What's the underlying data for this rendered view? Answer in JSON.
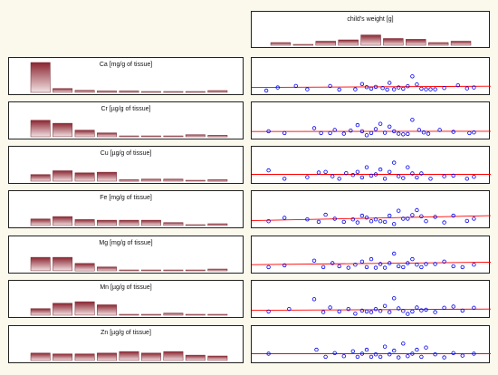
{
  "chart_data": {
    "type": "scatter",
    "colors": {
      "bar_top": "#8b2530",
      "bar_bottom": "#f2e2e4",
      "bar_stroke": "#7a2a33",
      "point": "#0000ee",
      "fit_line": "#ff0000",
      "page_background": "#fbf8ec",
      "panel_background": "#ffffff"
    },
    "response": {
      "name": "child's weight [g]",
      "histogram": [
        0.1,
        0.02,
        0.15,
        0.2,
        0.38,
        0.25,
        0.22,
        0.1,
        0.15
      ]
    },
    "predictors": [
      {
        "name": "Ca [mg/g of tissue]",
        "histogram": [
          1.0,
          0.13,
          0.07,
          0.05,
          0.05,
          0.02,
          0.02,
          0.02,
          0.06
        ],
        "fit": [
          0.16,
          0.2
        ],
        "points": [
          [
            0.04,
            0.06
          ],
          [
            0.09,
            0.16
          ],
          [
            0.17,
            0.21
          ],
          [
            0.22,
            0.1
          ],
          [
            0.32,
            0.21
          ],
          [
            0.36,
            0.09
          ],
          [
            0.43,
            0.1
          ],
          [
            0.46,
            0.27
          ],
          [
            0.48,
            0.17
          ],
          [
            0.5,
            0.12
          ],
          [
            0.52,
            0.18
          ],
          [
            0.55,
            0.14
          ],
          [
            0.57,
            0.09
          ],
          [
            0.58,
            0.31
          ],
          [
            0.6,
            0.1
          ],
          [
            0.62,
            0.16
          ],
          [
            0.64,
            0.12
          ],
          [
            0.66,
            0.2
          ],
          [
            0.68,
            0.52
          ],
          [
            0.7,
            0.26
          ],
          [
            0.72,
            0.12
          ],
          [
            0.74,
            0.1
          ],
          [
            0.78,
            0.1
          ],
          [
            0.82,
            0.14
          ],
          [
            0.88,
            0.23
          ],
          [
            0.92,
            0.13
          ],
          [
            0.95,
            0.16
          ],
          [
            0.76,
            0.1
          ]
        ]
      },
      {
        "name": "Cr [µg/g of tissue]",
        "histogram": [
          0.55,
          0.45,
          0.22,
          0.13,
          0.03,
          0.03,
          0.03,
          0.07,
          0.05
        ],
        "fit": [
          0.17,
          0.18
        ],
        "points": [
          [
            0.05,
            0.18
          ],
          [
            0.12,
            0.12
          ],
          [
            0.25,
            0.28
          ],
          [
            0.28,
            0.12
          ],
          [
            0.32,
            0.12
          ],
          [
            0.34,
            0.22
          ],
          [
            0.38,
            0.1
          ],
          [
            0.41,
            0.2
          ],
          [
            0.44,
            0.38
          ],
          [
            0.46,
            0.18
          ],
          [
            0.48,
            0.05
          ],
          [
            0.5,
            0.12
          ],
          [
            0.52,
            0.25
          ],
          [
            0.54,
            0.42
          ],
          [
            0.56,
            0.13
          ],
          [
            0.58,
            0.33
          ],
          [
            0.6,
            0.18
          ],
          [
            0.62,
            0.1
          ],
          [
            0.64,
            0.08
          ],
          [
            0.66,
            0.09
          ],
          [
            0.68,
            0.55
          ],
          [
            0.71,
            0.22
          ],
          [
            0.73,
            0.14
          ],
          [
            0.75,
            0.1
          ],
          [
            0.8,
            0.22
          ],
          [
            0.86,
            0.16
          ],
          [
            0.93,
            0.12
          ],
          [
            0.95,
            0.14
          ]
        ]
      },
      {
        "name": "Cu [µg/g of tissue]",
        "histogram": [
          0.22,
          0.35,
          0.28,
          0.3,
          0.05,
          0.07,
          0.07,
          0.03,
          0.05
        ],
        "fit": [
          0.22,
          0.22
        ],
        "points": [
          [
            0.05,
            0.35
          ],
          [
            0.12,
            0.08
          ],
          [
            0.22,
            0.13
          ],
          [
            0.27,
            0.28
          ],
          [
            0.3,
            0.3
          ],
          [
            0.33,
            0.16
          ],
          [
            0.36,
            0.08
          ],
          [
            0.39,
            0.26
          ],
          [
            0.42,
            0.2
          ],
          [
            0.44,
            0.3
          ],
          [
            0.46,
            0.12
          ],
          [
            0.48,
            0.45
          ],
          [
            0.5,
            0.18
          ],
          [
            0.52,
            0.22
          ],
          [
            0.54,
            0.38
          ],
          [
            0.56,
            0.08
          ],
          [
            0.58,
            0.3
          ],
          [
            0.6,
            0.6
          ],
          [
            0.62,
            0.16
          ],
          [
            0.64,
            0.1
          ],
          [
            0.66,
            0.45
          ],
          [
            0.68,
            0.25
          ],
          [
            0.7,
            0.12
          ],
          [
            0.72,
            0.25
          ],
          [
            0.76,
            0.08
          ],
          [
            0.82,
            0.16
          ],
          [
            0.86,
            0.18
          ],
          [
            0.92,
            0.08
          ],
          [
            0.95,
            0.14
          ]
        ]
      },
      {
        "name": "Fe [mg/g of tissue]",
        "histogram": [
          0.22,
          0.3,
          0.2,
          0.18,
          0.18,
          0.18,
          0.1,
          0.02,
          0.06
        ],
        "fit": [
          0.16,
          0.32
        ],
        "points": [
          [
            0.05,
            0.14
          ],
          [
            0.12,
            0.25
          ],
          [
            0.22,
            0.2
          ],
          [
            0.27,
            0.12
          ],
          [
            0.3,
            0.35
          ],
          [
            0.34,
            0.22
          ],
          [
            0.38,
            0.12
          ],
          [
            0.42,
            0.2
          ],
          [
            0.44,
            0.1
          ],
          [
            0.46,
            0.32
          ],
          [
            0.48,
            0.26
          ],
          [
            0.5,
            0.14
          ],
          [
            0.52,
            0.2
          ],
          [
            0.54,
            0.14
          ],
          [
            0.56,
            0.12
          ],
          [
            0.58,
            0.32
          ],
          [
            0.6,
            0.05
          ],
          [
            0.62,
            0.48
          ],
          [
            0.64,
            0.22
          ],
          [
            0.66,
            0.22
          ],
          [
            0.68,
            0.34
          ],
          [
            0.7,
            0.5
          ],
          [
            0.72,
            0.3
          ],
          [
            0.74,
            0.14
          ],
          [
            0.78,
            0.28
          ],
          [
            0.82,
            0.1
          ],
          [
            0.86,
            0.32
          ],
          [
            0.92,
            0.15
          ],
          [
            0.95,
            0.22
          ]
        ]
      },
      {
        "name": "Mg [mg/g of tissue]",
        "histogram": [
          0.45,
          0.45,
          0.25,
          0.13,
          0.03,
          0.03,
          0.03,
          0.03,
          0.06
        ],
        "fit": [
          0.2,
          0.28
        ],
        "points": [
          [
            0.05,
            0.12
          ],
          [
            0.12,
            0.18
          ],
          [
            0.25,
            0.33
          ],
          [
            0.29,
            0.12
          ],
          [
            0.33,
            0.25
          ],
          [
            0.36,
            0.15
          ],
          [
            0.4,
            0.1
          ],
          [
            0.43,
            0.2
          ],
          [
            0.46,
            0.3
          ],
          [
            0.48,
            0.12
          ],
          [
            0.5,
            0.38
          ],
          [
            0.52,
            0.1
          ],
          [
            0.54,
            0.22
          ],
          [
            0.56,
            0.1
          ],
          [
            0.58,
            0.25
          ],
          [
            0.6,
            0.56
          ],
          [
            0.62,
            0.15
          ],
          [
            0.64,
            0.12
          ],
          [
            0.66,
            0.25
          ],
          [
            0.68,
            0.38
          ],
          [
            0.7,
            0.2
          ],
          [
            0.72,
            0.12
          ],
          [
            0.74,
            0.22
          ],
          [
            0.78,
            0.22
          ],
          [
            0.82,
            0.3
          ],
          [
            0.86,
            0.15
          ],
          [
            0.9,
            0.12
          ],
          [
            0.95,
            0.2
          ]
        ]
      },
      {
        "name": "Mn [µg/g of tissue]",
        "histogram": [
          0.22,
          0.4,
          0.45,
          0.35,
          0.03,
          0.03,
          0.07,
          0.03,
          0.03
        ],
        "fit": [
          0.16,
          0.2
        ],
        "points": [
          [
            0.05,
            0.12
          ],
          [
            0.14,
            0.2
          ],
          [
            0.25,
            0.52
          ],
          [
            0.29,
            0.1
          ],
          [
            0.32,
            0.25
          ],
          [
            0.36,
            0.12
          ],
          [
            0.4,
            0.2
          ],
          [
            0.43,
            0.05
          ],
          [
            0.46,
            0.15
          ],
          [
            0.48,
            0.12
          ],
          [
            0.5,
            0.1
          ],
          [
            0.52,
            0.2
          ],
          [
            0.54,
            0.14
          ],
          [
            0.56,
            0.3
          ],
          [
            0.58,
            0.1
          ],
          [
            0.6,
            0.55
          ],
          [
            0.62,
            0.22
          ],
          [
            0.64,
            0.14
          ],
          [
            0.66,
            0.04
          ],
          [
            0.68,
            0.12
          ],
          [
            0.7,
            0.25
          ],
          [
            0.72,
            0.16
          ],
          [
            0.74,
            0.18
          ],
          [
            0.78,
            0.1
          ],
          [
            0.82,
            0.24
          ],
          [
            0.86,
            0.28
          ],
          [
            0.9,
            0.15
          ],
          [
            0.95,
            0.24
          ]
        ]
      },
      {
        "name": "Zn [µg/g of tissue]",
        "histogram": [
          0.25,
          0.22,
          0.22,
          0.25,
          0.3,
          0.25,
          0.3,
          0.18,
          0.15
        ],
        "fit": [
          0.22,
          0.22
        ],
        "points": [
          [
            0.05,
            0.22
          ],
          [
            0.26,
            0.35
          ],
          [
            0.3,
            0.12
          ],
          [
            0.34,
            0.24
          ],
          [
            0.38,
            0.14
          ],
          [
            0.42,
            0.3
          ],
          [
            0.44,
            0.12
          ],
          [
            0.46,
            0.22
          ],
          [
            0.48,
            0.35
          ],
          [
            0.5,
            0.12
          ],
          [
            0.52,
            0.2
          ],
          [
            0.54,
            0.12
          ],
          [
            0.56,
            0.45
          ],
          [
            0.58,
            0.2
          ],
          [
            0.6,
            0.32
          ],
          [
            0.62,
            0.1
          ],
          [
            0.64,
            0.55
          ],
          [
            0.66,
            0.14
          ],
          [
            0.68,
            0.22
          ],
          [
            0.7,
            0.35
          ],
          [
            0.72,
            0.12
          ],
          [
            0.74,
            0.42
          ],
          [
            0.78,
            0.2
          ],
          [
            0.82,
            0.1
          ],
          [
            0.86,
            0.24
          ],
          [
            0.9,
            0.16
          ],
          [
            0.95,
            0.22
          ]
        ]
      }
    ]
  }
}
